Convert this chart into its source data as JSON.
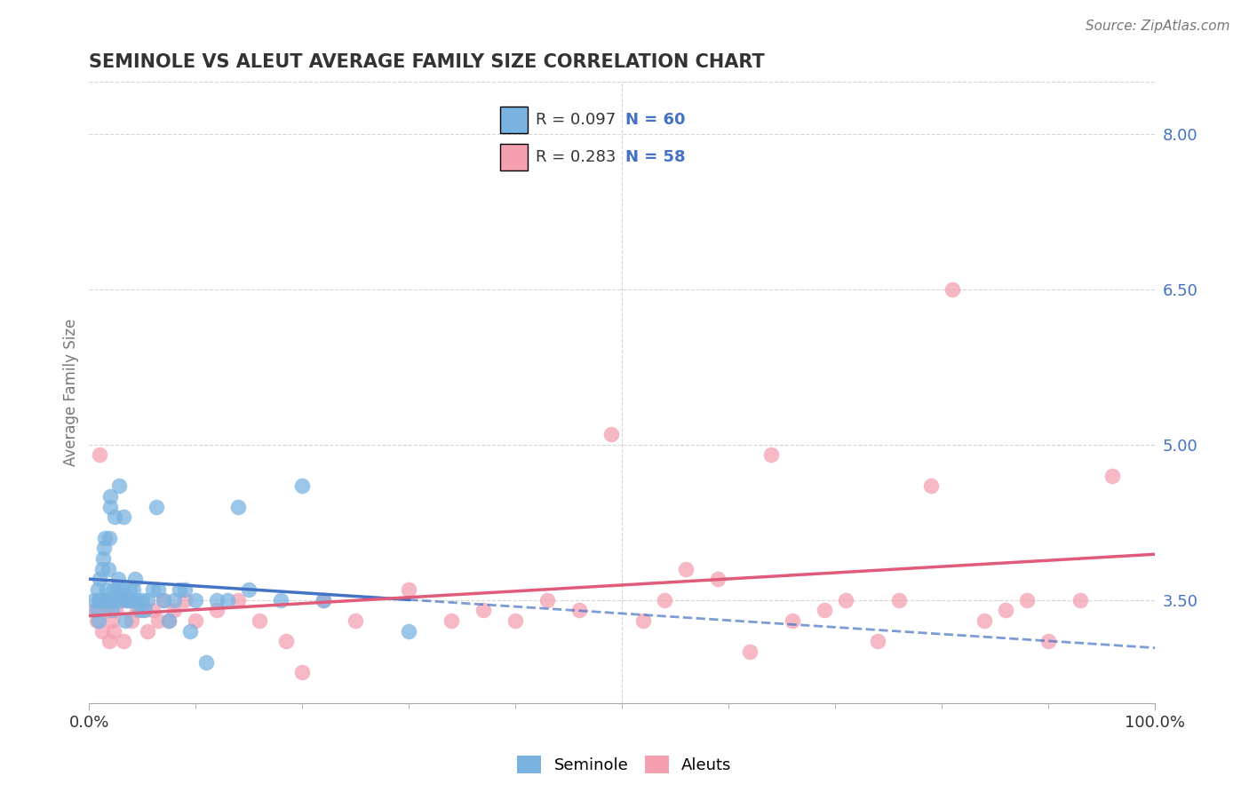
{
  "title": "SEMINOLE VS ALEUT AVERAGE FAMILY SIZE CORRELATION CHART",
  "source_text": "Source: ZipAtlas.com",
  "ylabel": "Average Family Size",
  "xlim": [
    0,
    1
  ],
  "ylim": [
    2.5,
    8.5
  ],
  "yticks_right": [
    3.5,
    5.0,
    6.5,
    8.0
  ],
  "ytick_labels_right": [
    "3.50",
    "5.00",
    "6.50",
    "8.00"
  ],
  "seminole_color": "#7ab3e0",
  "aleuts_color": "#f4a0b0",
  "seminole_line_color": "#4472c4",
  "aleuts_line_color": "#e05a7a",
  "background_color": "#ffffff",
  "grid_color": "#cccccc",
  "legend_box_color": "#cccccc",
  "right_tick_color": "#4472c4",
  "title_color": "#333333",
  "source_color": "#777777",
  "ylabel_color": "#777777",
  "seminole_x": [
    0.005,
    0.007,
    0.008,
    0.009,
    0.01,
    0.01,
    0.01,
    0.012,
    0.013,
    0.014,
    0.015,
    0.015,
    0.016,
    0.017,
    0.018,
    0.019,
    0.02,
    0.02,
    0.021,
    0.022,
    0.023,
    0.024,
    0.025,
    0.026,
    0.027,
    0.028,
    0.03,
    0.031,
    0.032,
    0.034,
    0.035,
    0.036,
    0.038,
    0.04,
    0.041,
    0.043,
    0.045,
    0.047,
    0.05,
    0.052,
    0.055,
    0.06,
    0.063,
    0.065,
    0.07,
    0.075,
    0.08,
    0.085,
    0.09,
    0.095,
    0.1,
    0.11,
    0.12,
    0.13,
    0.14,
    0.15,
    0.18,
    0.2,
    0.22,
    0.3
  ],
  "seminole_y": [
    3.5,
    3.4,
    3.6,
    3.3,
    3.5,
    3.5,
    3.7,
    3.8,
    3.9,
    4.0,
    4.1,
    3.5,
    3.6,
    3.5,
    3.8,
    4.1,
    4.4,
    4.5,
    3.4,
    3.5,
    3.6,
    4.3,
    3.5,
    3.6,
    3.7,
    4.6,
    3.5,
    3.6,
    4.3,
    3.3,
    3.5,
    3.5,
    3.6,
    3.5,
    3.6,
    3.7,
    3.5,
    3.4,
    3.5,
    3.4,
    3.5,
    3.6,
    4.4,
    3.6,
    3.5,
    3.3,
    3.5,
    3.6,
    3.6,
    3.2,
    3.5,
    2.9,
    3.5,
    3.5,
    4.4,
    3.6,
    3.5,
    4.6,
    3.5,
    3.2
  ],
  "aleuts_x": [
    0.005,
    0.007,
    0.009,
    0.01,
    0.012,
    0.015,
    0.017,
    0.019,
    0.021,
    0.023,
    0.025,
    0.028,
    0.032,
    0.036,
    0.04,
    0.045,
    0.05,
    0.055,
    0.06,
    0.065,
    0.07,
    0.075,
    0.08,
    0.09,
    0.1,
    0.12,
    0.14,
    0.16,
    0.185,
    0.2,
    0.22,
    0.25,
    0.3,
    0.34,
    0.37,
    0.4,
    0.43,
    0.46,
    0.49,
    0.52,
    0.54,
    0.56,
    0.59,
    0.62,
    0.64,
    0.66,
    0.69,
    0.71,
    0.74,
    0.76,
    0.79,
    0.81,
    0.84,
    0.86,
    0.88,
    0.9,
    0.93,
    0.96
  ],
  "aleuts_y": [
    3.4,
    3.3,
    3.5,
    4.9,
    3.2,
    3.5,
    3.4,
    3.1,
    3.3,
    3.2,
    3.4,
    3.5,
    3.1,
    3.5,
    3.3,
    3.4,
    3.4,
    3.2,
    3.4,
    3.3,
    3.5,
    3.3,
    3.4,
    3.5,
    3.3,
    3.4,
    3.5,
    3.3,
    3.1,
    2.8,
    3.5,
    3.3,
    3.6,
    3.3,
    3.4,
    3.3,
    3.5,
    3.4,
    5.1,
    3.3,
    3.5,
    3.8,
    3.7,
    3.0,
    4.9,
    3.3,
    3.4,
    3.5,
    3.1,
    3.5,
    4.6,
    6.5,
    3.3,
    3.4,
    3.5,
    3.1,
    3.5,
    4.7
  ]
}
